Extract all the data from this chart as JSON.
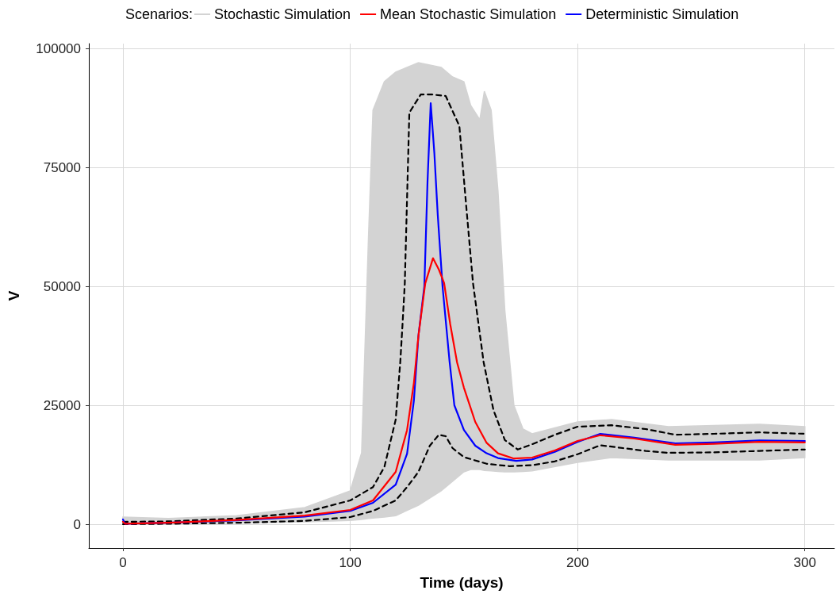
{
  "chart_data": {
    "type": "line",
    "xlabel": "Time (days)",
    "ylabel": "V",
    "legend_title": "Scenarios:",
    "legend": "top",
    "grid": true,
    "marker": "none",
    "xlim": [
      -15,
      313
    ],
    "ylim": [
      -5000,
      101000
    ],
    "xticks": [
      0,
      100,
      200,
      300
    ],
    "yticks": [
      0,
      25000,
      50000,
      75000,
      100000
    ],
    "series": [
      {
        "name": "Stochastic Simulation",
        "color": "#d3d3d3",
        "x": [
          0,
          20,
          50,
          80,
          100,
          105,
          108,
          110,
          115,
          120,
          130,
          140,
          145,
          150,
          153,
          157,
          159,
          162,
          165,
          168,
          172,
          176,
          180,
          200,
          215,
          240,
          280,
          300
        ],
        "values": [
          null,
          null,
          null,
          null,
          null,
          null,
          null,
          null,
          null,
          null,
          null,
          null,
          null,
          null,
          null,
          null,
          null,
          null,
          null,
          null,
          null,
          null,
          null,
          null,
          null,
          null,
          null,
          null
        ],
        "lower": [
          0,
          0,
          200,
          500,
          800,
          1000,
          1200,
          1300,
          1500,
          1800,
          4000,
          7000,
          9000,
          11000,
          11500,
          11500,
          11300,
          11200,
          11100,
          11000,
          11000,
          11100,
          11200,
          13000,
          14000,
          13500,
          13500,
          14000
        ],
        "upper": [
          1500,
          1200,
          1800,
          3500,
          7000,
          15000,
          60000,
          87000,
          93000,
          95000,
          97000,
          96000,
          94000,
          93000,
          88000,
          85000,
          91000,
          87000,
          70000,
          45000,
          25000,
          20000,
          19000,
          21500,
          22000,
          20500,
          21000,
          20500
        ]
      },
      {
        "name": "Mean Stochastic Simulation",
        "color": "#ff0000",
        "x": [
          0,
          1,
          20,
          50,
          80,
          100,
          110,
          120,
          125,
          128,
          130,
          133,
          136.4,
          139,
          141.3,
          144,
          147,
          150,
          155,
          160,
          165,
          172,
          180,
          190,
          200,
          210,
          225,
          243,
          260,
          280,
          300
        ],
        "values": [
          500,
          100,
          300,
          900,
          1800,
          3000,
          5000,
          11000,
          19800,
          29700,
          39600,
          50600,
          55900,
          53500,
          50700,
          42000,
          34000,
          28700,
          21500,
          17100,
          14900,
          13800,
          14000,
          15500,
          17500,
          18700,
          18000,
          16700,
          16900,
          17300,
          17200
        ]
      },
      {
        "name": "Deterministic Simulation",
        "color": "#0000ff",
        "x": [
          0,
          1,
          20,
          50,
          80,
          100,
          110,
          120,
          125,
          128,
          130,
          132.6,
          134,
          135.4,
          137,
          138.5,
          140.6,
          143.7,
          145.8,
          150,
          155,
          160,
          165,
          173,
          180,
          190,
          200,
          210,
          225,
          243,
          260,
          280,
          300
        ],
        "values": [
          1000,
          100,
          300,
          800,
          1600,
          2800,
          4500,
          8300,
          14800,
          26000,
          39600,
          50000,
          72000,
          88500,
          78000,
          65000,
          50000,
          34200,
          25000,
          19800,
          16500,
          14900,
          13900,
          13300,
          13600,
          15200,
          17300,
          19000,
          18200,
          17000,
          17200,
          17600,
          17500
        ]
      },
      {
        "color": "#000000",
        "line_style": "dashed",
        "x": [
          0,
          20,
          50,
          80,
          100,
          110,
          115,
          120,
          122,
          123,
          124,
          126,
          131,
          136,
          142,
          148,
          151,
          154,
          158.7,
          163,
          168,
          173.7,
          180,
          190,
          200,
          215,
          230,
          243,
          260,
          280,
          300
        ],
        "values": [
          500,
          600,
          1200,
          2500,
          5000,
          7800,
          12000,
          22000,
          34000,
          42000,
          50600,
          86500,
          90300,
          90300,
          90000,
          83700,
          67000,
          50700,
          34000,
          24000,
          17700,
          15700,
          16800,
          18800,
          20500,
          20800,
          20000,
          18800,
          19000,
          19300,
          19000
        ]
      },
      {
        "color": "#000000",
        "line_style": "dashed",
        "x": [
          0,
          20,
          50,
          80,
          100,
          110,
          120,
          125,
          130,
          135,
          139,
          142,
          145,
          150,
          160,
          170,
          180,
          190,
          200,
          210,
          220,
          230,
          240,
          260,
          280,
          300
        ],
        "values": [
          0,
          100,
          300,
          700,
          1500,
          2800,
          5000,
          7800,
          11000,
          16500,
          18800,
          18500,
          16000,
          14100,
          12700,
          12200,
          12400,
          13200,
          14700,
          16600,
          16000,
          15400,
          15000,
          15100,
          15400,
          15700
        ]
      }
    ]
  }
}
